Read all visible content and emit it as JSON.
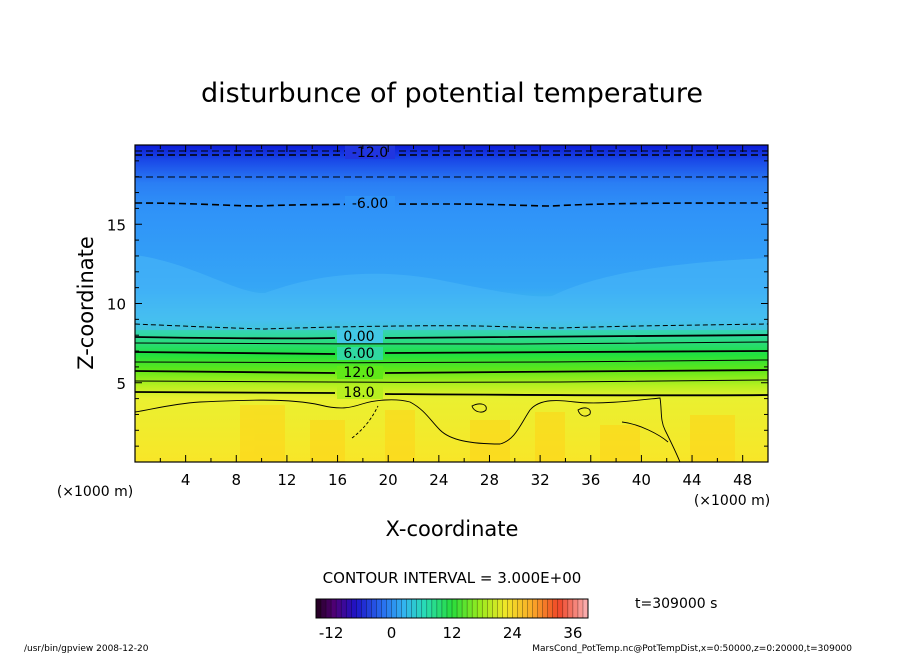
{
  "chart_data": {
    "type": "heatmap",
    "title": "disturbunce of potential temperature",
    "xlabel": "X-coordinate",
    "ylabel": "Z-coordinate",
    "x_unit_left": "(×1000 m)",
    "x_unit_right": "(×1000 m)",
    "xlim": [
      0,
      50
    ],
    "ylim": [
      0,
      20
    ],
    "x_ticks": [
      4,
      8,
      12,
      16,
      20,
      24,
      28,
      32,
      36,
      40,
      44,
      48
    ],
    "y_ticks": [
      5,
      10,
      15
    ],
    "contour_labels": [
      {
        "text": "-12.0",
        "x": 19,
        "z": 19.5
      },
      {
        "text": "-6.00",
        "x": 19,
        "z": 16.3
      },
      {
        "text": "0.00",
        "x": 17.8,
        "z": 8.0
      },
      {
        "text": "6.00",
        "x": 17.8,
        "z": 6.9
      },
      {
        "text": "12.0",
        "x": 17.8,
        "z": 5.7
      },
      {
        "text": "18.0",
        "x": 17.8,
        "z": 4.4
      }
    ],
    "contour_levels": [
      -15,
      -12,
      -9,
      -6,
      -3,
      0,
      3,
      6,
      9,
      12,
      15,
      18,
      21
    ],
    "contour_interval": "CONTOUR INTERVAL = 3.000E+00",
    "colorbar": {
      "range": [
        -15,
        39
      ],
      "ticks": [
        "-12",
        "0",
        "12",
        "24",
        "36"
      ]
    },
    "time_label": "t=309000 s"
  },
  "footer": {
    "left": "/usr/bin/gpview   2008-12-20",
    "right": "MarsCond_PotTemp.nc@PotTempDist,x=0:50000,z=0:20000,t=309000"
  }
}
